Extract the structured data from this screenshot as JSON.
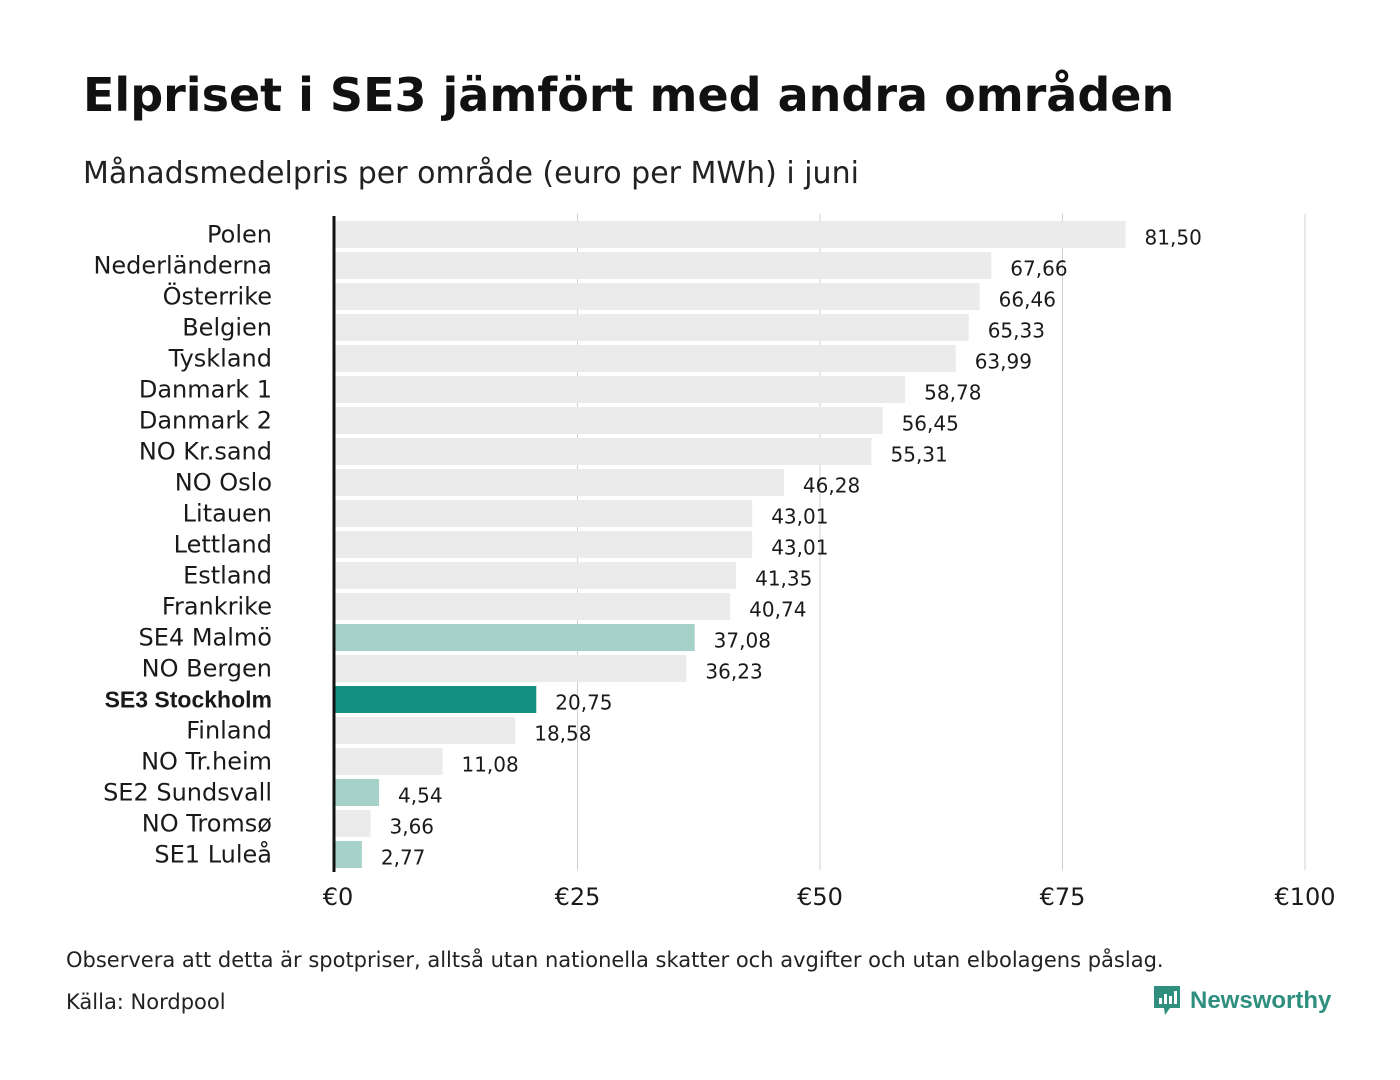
{
  "title": "Elpriset i SE3 jämfört med andra områden",
  "subtitle": "Månadsmedelpris per område (euro per MWh) i juni",
  "note": "Observera att detta är spotpriser, alltså utan nationella skatter och avgifter och utan elbolagens påslag.",
  "source": "Källa: Nordpool",
  "brand": {
    "name": "Newsworthy",
    "icon": "newsworthy-logo-icon"
  },
  "colors": {
    "default_bar": "#ebebeb",
    "swedish_bar": "#a6d1c9",
    "highlight_bar": "#129182",
    "axis": "#111111",
    "grid": "#d0d0d0",
    "brand": "#2f8f7f"
  },
  "chart_data": {
    "type": "bar",
    "orientation": "horizontal",
    "categories": [
      "Polen",
      "Nederländerna",
      "Österrike",
      "Belgien",
      "Tyskland",
      "Danmark  1",
      "Danmark  2",
      "NO Kr.sand",
      "NO Oslo",
      "Litauen",
      "Lettland",
      "Estland",
      "Frankrike",
      "SE4  Malmö",
      "NO Bergen",
      "SE3 Stockholm",
      "Finland",
      "NO Tr.heim",
      "SE2  Sundsvall",
      "NO Tromsø",
      "SE1  Luleå"
    ],
    "values": [
      81.5,
      67.66,
      66.46,
      65.33,
      63.99,
      58.78,
      56.45,
      55.31,
      46.28,
      43.01,
      43.01,
      41.35,
      40.74,
      37.08,
      36.23,
      20.75,
      18.58,
      11.08,
      4.54,
      3.66,
      2.77
    ],
    "value_labels": [
      "81,50",
      "67,66",
      "66,46",
      "65,33",
      "63,99",
      "58,78",
      "56,45",
      "55,31",
      "46,28",
      "43,01",
      "43,01",
      "41,35",
      "40,74",
      "37,08",
      "36,23",
      "20,75",
      "18,58",
      "11,08",
      "4,54",
      "3,66",
      "2,77"
    ],
    "highlight": [
      "default",
      "default",
      "default",
      "default",
      "default",
      "default",
      "default",
      "default",
      "default",
      "default",
      "default",
      "default",
      "default",
      "swedish",
      "default",
      "highlight",
      "default",
      "default",
      "swedish",
      "default",
      "swedish"
    ],
    "x_ticks": [
      0,
      25,
      50,
      75,
      100
    ],
    "x_tick_labels": [
      "€0",
      "€25",
      "€50",
      "€75",
      "€100"
    ],
    "xlim": [
      0,
      100
    ],
    "grid": "vertical",
    "legend": "none"
  }
}
